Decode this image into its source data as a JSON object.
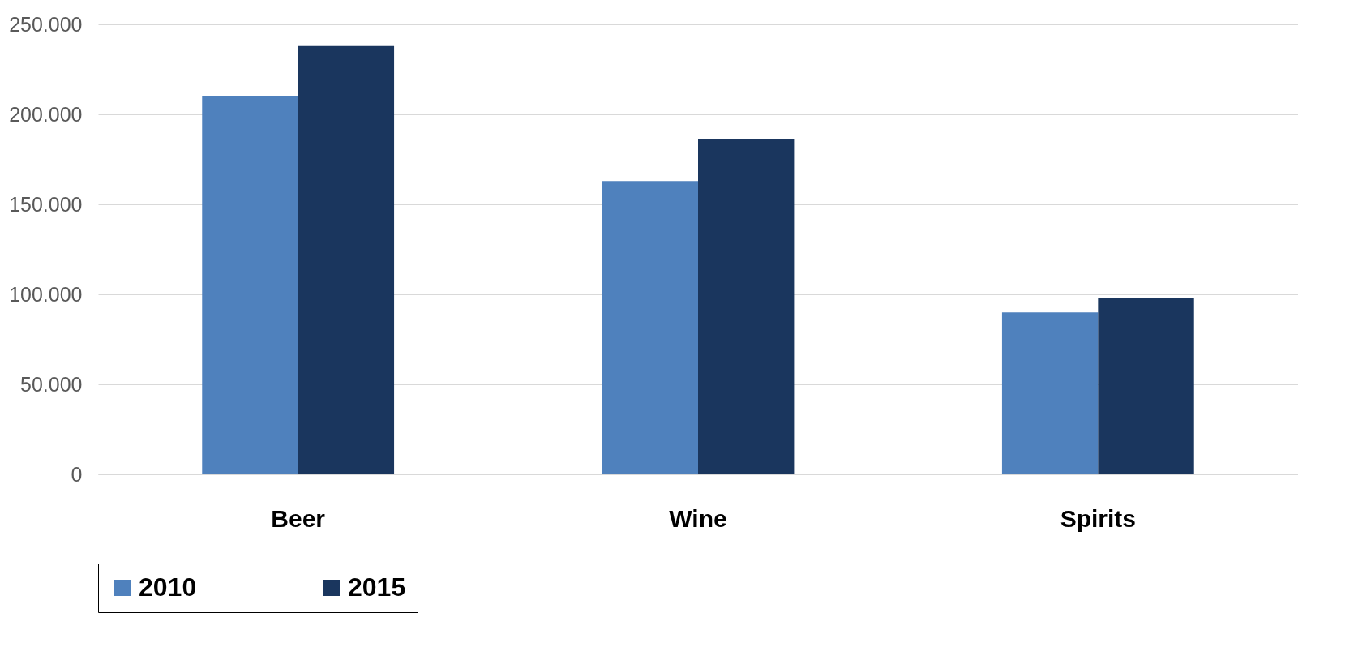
{
  "chart_data": {
    "type": "bar",
    "categories": [
      "Beer",
      "Wine",
      "Spirits"
    ],
    "series": [
      {
        "name": "2010",
        "color": "#4f81bd",
        "values": [
          210000,
          163000,
          90000
        ]
      },
      {
        "name": "2015",
        "color": "#1a365e",
        "values": [
          238000,
          186000,
          98000
        ]
      }
    ],
    "ylim": [
      0,
      250000
    ],
    "yticks": [
      0,
      {
        "value": 50000,
        "label": "50.000"
      },
      {
        "value": 100000,
        "label": "100.000"
      },
      {
        "value": 150000,
        "label": "150.000"
      },
      {
        "value": 200000,
        "label": "200.000"
      },
      {
        "value": 250000,
        "label": "250.000"
      }
    ],
    "grid": "y",
    "legend": "bottom"
  }
}
